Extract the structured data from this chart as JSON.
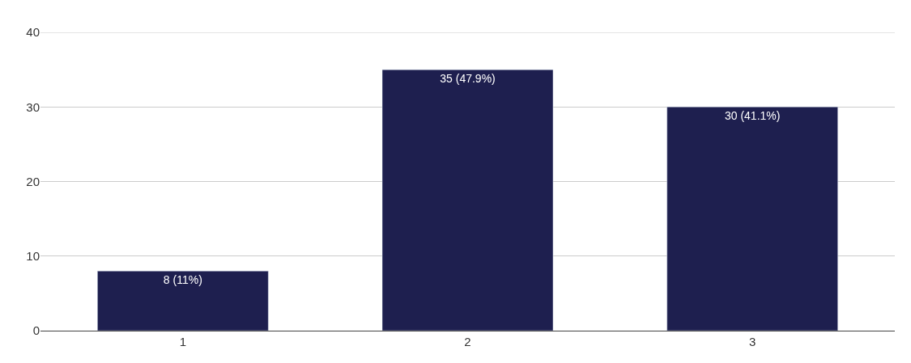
{
  "chart_data": {
    "type": "bar",
    "categories": [
      "1",
      "2",
      "3"
    ],
    "values": [
      8,
      35,
      30
    ],
    "value_labels": [
      "8 (11%)",
      "35 (47.9%)",
      "30 (41.1%)"
    ],
    "color": "#1e1f4f",
    "ylim": [
      0,
      40
    ],
    "yticks": [
      0,
      10,
      20,
      30,
      40
    ],
    "grid": "y"
  }
}
